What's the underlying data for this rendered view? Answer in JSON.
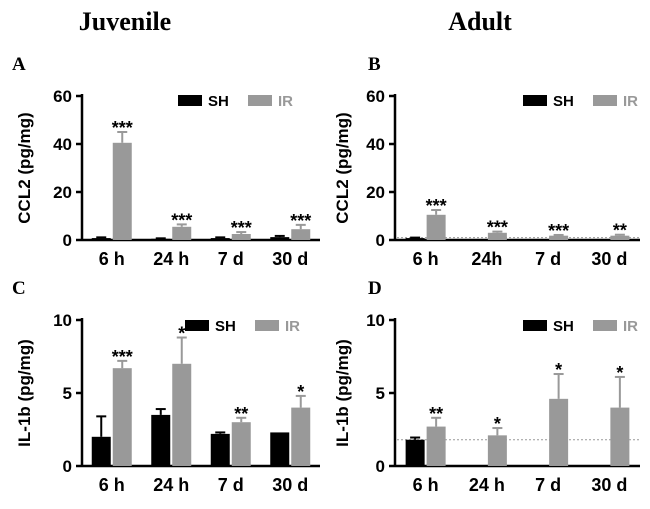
{
  "column_titles": [
    "Juvenile",
    "Adult"
  ],
  "colors": {
    "sh": "#000000",
    "ir": "#999999",
    "ref": "#999999"
  },
  "chart_data": [
    {
      "id": "A",
      "panel_label": "A",
      "type": "bar",
      "ylabel": "CCL2 (pg/mg)",
      "ylim": [
        0,
        60
      ],
      "yticks": [
        "0",
        "20",
        "40",
        "60"
      ],
      "categories": [
        "6 h",
        "24 h",
        "7 d",
        "30 d"
      ],
      "legend": [
        "SH",
        "IR"
      ],
      "series": [
        {
          "name": "SH",
          "values": [
            0.8,
            0.5,
            0.8,
            1.2
          ],
          "errors": [
            0.3,
            0.2,
            0.3,
            0.5
          ]
        },
        {
          "name": "IR",
          "values": [
            40.5,
            5.5,
            2.5,
            4.5
          ],
          "errors": [
            4.5,
            1.0,
            0.8,
            1.8
          ]
        }
      ],
      "significance": [
        "***",
        "***",
        "***",
        "***"
      ],
      "reference_line": null
    },
    {
      "id": "B",
      "panel_label": "B",
      "type": "bar",
      "ylabel": "CCL2 (pg/mg)",
      "ylim": [
        0,
        60
      ],
      "yticks": [
        "0",
        "20",
        "40",
        "60"
      ],
      "categories": [
        "6 h",
        "24h",
        "7 d",
        "30 d"
      ],
      "legend": [
        "SH",
        "IR"
      ],
      "series": [
        {
          "name": "SH",
          "values": [
            0.8,
            null,
            null,
            null
          ],
          "errors": [
            0.2,
            null,
            null,
            null
          ]
        },
        {
          "name": "IR",
          "values": [
            10.5,
            3.0,
            1.8,
            1.8
          ],
          "errors": [
            2.0,
            0.5,
            0.3,
            0.4
          ]
        }
      ],
      "significance": [
        "***",
        "***",
        "***",
        "**"
      ],
      "reference_line": 1.0
    },
    {
      "id": "C",
      "panel_label": "C",
      "type": "bar",
      "ylabel": "IL-1b (pg/mg)",
      "ylim": [
        0,
        10
      ],
      "yticks": [
        "0",
        "5",
        "10"
      ],
      "categories": [
        "6 h",
        "24 h",
        "7 d",
        "30 d"
      ],
      "legend": [
        "SH",
        "IR"
      ],
      "series": [
        {
          "name": "SH",
          "values": [
            2.0,
            3.5,
            2.2,
            2.3
          ],
          "errors": [
            1.4,
            0.4,
            0.1,
            0.0
          ]
        },
        {
          "name": "IR",
          "values": [
            6.7,
            7.0,
            3.0,
            4.0
          ],
          "errors": [
            0.5,
            1.8,
            0.3,
            0.8
          ]
        }
      ],
      "significance": [
        "***",
        "*",
        "**",
        "*"
      ],
      "reference_line": null
    },
    {
      "id": "D",
      "panel_label": "D",
      "type": "bar",
      "ylabel": "IL-1b (pg/mg)",
      "ylim": [
        0,
        10
      ],
      "yticks": [
        "0",
        "5",
        "10"
      ],
      "categories": [
        "6 h",
        "24 h",
        "7 d",
        "30 d"
      ],
      "legend": [
        "SH",
        "IR"
      ],
      "series": [
        {
          "name": "SH",
          "values": [
            1.8,
            null,
            null,
            null
          ],
          "errors": [
            0.15,
            null,
            null,
            null
          ]
        },
        {
          "name": "IR",
          "values": [
            2.7,
            2.1,
            4.6,
            4.0
          ],
          "errors": [
            0.6,
            0.5,
            1.7,
            2.1
          ]
        }
      ],
      "significance": [
        "**",
        "*",
        "*",
        "*"
      ],
      "reference_line": 1.8
    }
  ]
}
